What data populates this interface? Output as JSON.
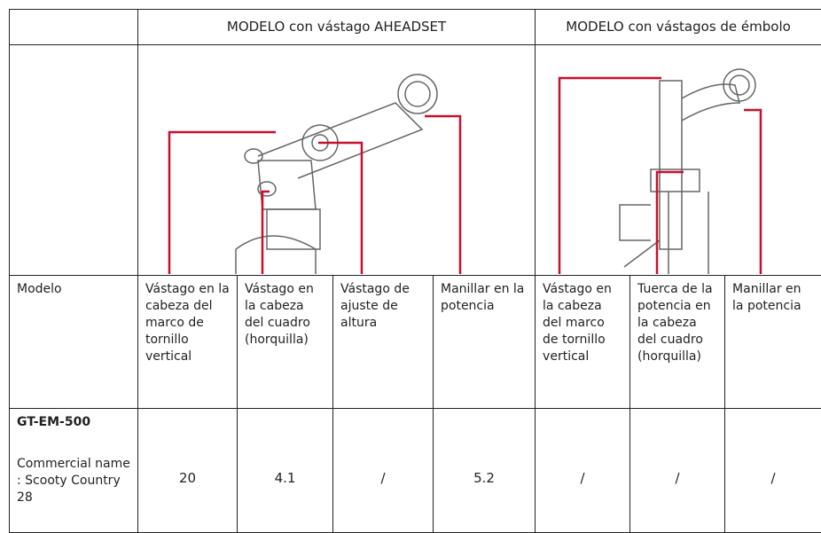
{
  "header": {
    "first": "",
    "aheadset": "MODELO con vástago AHEADSET",
    "embolo": "MODELO con vástagos de émbolo"
  },
  "columns": {
    "label": "Modelo",
    "names": [
      "Vástago en la cabeza del marco de tornillo vertical",
      "Vástago en la cabeza del cuadro (horquilla)",
      "Vástago de ajuste de altura",
      "Manillar en la potencia",
      "Vástago en la cabeza del marco de tornillo vertical",
      "Tuerca de la potencia en la cabeza del cuadro (horquilla)",
      "Manillar en la potencia"
    ]
  },
  "rows": [
    {
      "model": "GT-EM-500",
      "commercial": "Commercial name : Scooty Country 28",
      "values": [
        20,
        4.1,
        "/",
        5.2,
        "/",
        "/",
        "/"
      ]
    }
  ]
}
